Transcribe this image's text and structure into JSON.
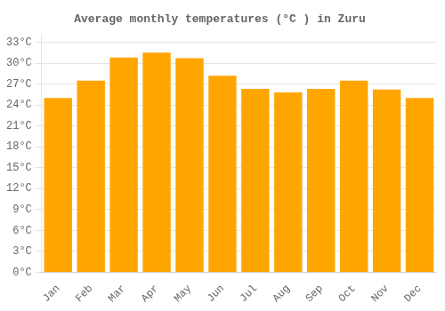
{
  "chart_data": {
    "type": "bar",
    "title": "Average monthly temperatures (°C ) in Zuru",
    "categories": [
      "Jan",
      "Feb",
      "Mar",
      "Apr",
      "May",
      "Jun",
      "Jul",
      "Aug",
      "Sep",
      "Oct",
      "Nov",
      "Dec"
    ],
    "values": [
      25.0,
      27.5,
      30.8,
      31.5,
      30.7,
      28.2,
      26.3,
      25.8,
      26.3,
      27.5,
      26.2,
      25.0
    ],
    "color": "#FFA500",
    "ylim": [
      0,
      34
    ],
    "yticks": [
      {
        "value": 0,
        "label": "0°C"
      },
      {
        "value": 3,
        "label": "3°C"
      },
      {
        "value": 6,
        "label": "6°C"
      },
      {
        "value": 9,
        "label": "9°C"
      },
      {
        "value": 12,
        "label": "12°C"
      },
      {
        "value": 15,
        "label": "15°C"
      },
      {
        "value": 18,
        "label": "18°C"
      },
      {
        "value": 21,
        "label": "21°C"
      },
      {
        "value": 24,
        "label": "24°C"
      },
      {
        "value": 27,
        "label": "27°C"
      },
      {
        "value": 30,
        "label": "30°C"
      },
      {
        "value": 33,
        "label": "33°C"
      }
    ],
    "grid": true
  }
}
